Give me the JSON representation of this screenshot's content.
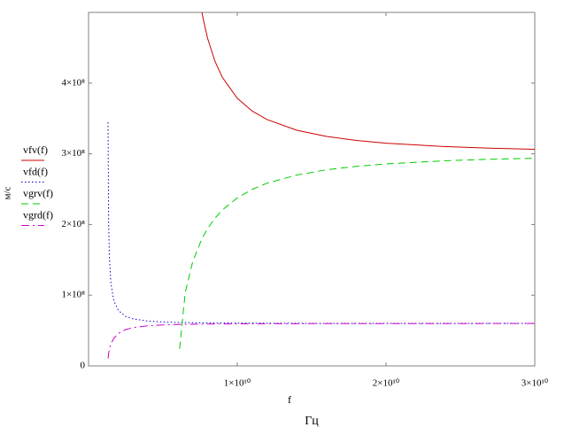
{
  "chart_data": {
    "type": "line",
    "xlabel": "f",
    "xunit": "Гц",
    "ylabel": "м/с",
    "xlim": [
      0,
      30000000000
    ],
    "ylim": [
      0,
      500000000
    ],
    "xticks": [
      {
        "value": 10000000000,
        "label": "1×10¹⁰"
      },
      {
        "value": 20000000000,
        "label": "2×10¹⁰"
      },
      {
        "value": 30000000000,
        "label": "3×10¹⁰"
      }
    ],
    "yticks": [
      0,
      {
        "value": 100000000,
        "label": "1×10⁸"
      },
      {
        "value": 200000000,
        "label": "2×10⁸"
      },
      {
        "value": 300000000,
        "label": "3×10⁸"
      },
      {
        "value": 400000000,
        "label": "4×10⁸"
      }
    ],
    "series": [
      {
        "name": "vfv(f)",
        "color": "#cc0000",
        "dash": "solid",
        "x": [
          7620000000,
          7700000000,
          8000000000,
          8500000000,
          9000000000,
          10000000000,
          11000000000,
          12000000000,
          14000000000,
          16000000000,
          18000000000,
          20000000000,
          24000000000,
          27000000000,
          30000000000
        ],
        "values": [
          500600000,
          491600000,
          463700000,
          430800000,
          408000000,
          378600000,
          360500000,
          348400000,
          333300000,
          324500000,
          318900000,
          315000000,
          310200000,
          308000000,
          306400000
        ]
      },
      {
        "name": "vfd(f)",
        "color": "#0000cc",
        "dash": "dotted",
        "x": [
          1310000000,
          1350000000,
          1400000000,
          1500000000,
          1700000000,
          2000000000,
          2500000000,
          3000000000,
          4000000000,
          5000000000,
          6000000000,
          8000000000,
          10000000000,
          15000000000,
          20000000000,
          30000000000
        ],
        "values": [
          344600000,
          203600000,
          154400000,
          117600000,
          92100000,
          78500000,
          70000000,
          66500000,
          63400000,
          62100000,
          61400000,
          60800000,
          60500000,
          60200000,
          60100000,
          60100000
        ]
      },
      {
        "name": "vgrv(f)",
        "color": "#00cc00",
        "dash": "dashed",
        "x": [
          6120000000,
          6500000000,
          7000000000,
          7620000000,
          8000000000,
          8500000000,
          9000000000,
          10000000000,
          11000000000,
          12000000000,
          14000000000,
          16000000000,
          18000000000,
          20000000000,
          24000000000,
          27000000000,
          30000000000
        ],
        "values": [
          24200000,
          103600000,
          147200000,
          179800000,
          194100000,
          208900000,
          220600000,
          237700000,
          249700000,
          258400000,
          270000000,
          277400000,
          282200000,
          285700000,
          290200000,
          292300000,
          293700000
        ]
      },
      {
        "name": "vgrd(f)",
        "color": "#cc00cc",
        "dash": "dashdot",
        "x": [
          1310000000,
          1350000000,
          1400000000,
          1500000000,
          1700000000,
          2000000000,
          2500000000,
          3000000000,
          4000000000,
          5000000000,
          6000000000,
          8000000000,
          10000000000,
          15000000000,
          20000000000,
          30000000000
        ],
        "values": [
          10450000,
          17680000,
          23320000,
          30620000,
          39080000,
          45850000,
          51400000,
          54170000,
          56800000,
          57970000,
          58600000,
          59210000,
          59500000,
          59780000,
          59880000,
          59940000
        ]
      }
    ]
  }
}
